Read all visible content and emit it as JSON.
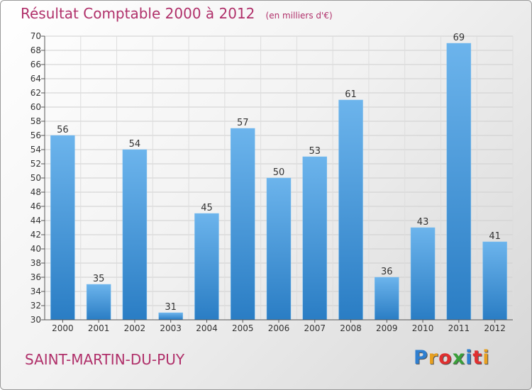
{
  "header": {
    "title": "Résultat Comptable 2000 à 2012",
    "unit": "(en milliers d'€)"
  },
  "footer": {
    "commune": "SAINT-MARTIN-DU-PUY",
    "logo": [
      "P",
      "r",
      "o",
      "x",
      "i",
      "t",
      "i"
    ],
    "logo_colors": [
      "#2f7fd0",
      "#e8a020",
      "#e03030",
      "#3aa03a",
      "#2f7fd0",
      "#e03030",
      "#e8a020"
    ]
  },
  "colors": {
    "bar_light": "#6cb4ec",
    "bar_dark": "#2a7dc4",
    "title": "#b0306a"
  },
  "chart_data": {
    "type": "bar",
    "title": "Résultat Comptable 2000 à 2012",
    "subtitle": "(en milliers d'€)",
    "xlabel": "",
    "ylabel": "",
    "categories": [
      "2000",
      "2001",
      "2002",
      "2003",
      "2004",
      "2005",
      "2006",
      "2007",
      "2008",
      "2009",
      "2010",
      "2011",
      "2012"
    ],
    "values": [
      56,
      35,
      54,
      31,
      45,
      57,
      50,
      53,
      61,
      36,
      43,
      69,
      41
    ],
    "ylim": [
      30,
      70
    ],
    "yticks": [
      30,
      32,
      34,
      36,
      38,
      40,
      42,
      44,
      46,
      48,
      50,
      52,
      54,
      56,
      58,
      60,
      62,
      64,
      66,
      68,
      70
    ],
    "grid": true,
    "legend": "none"
  }
}
